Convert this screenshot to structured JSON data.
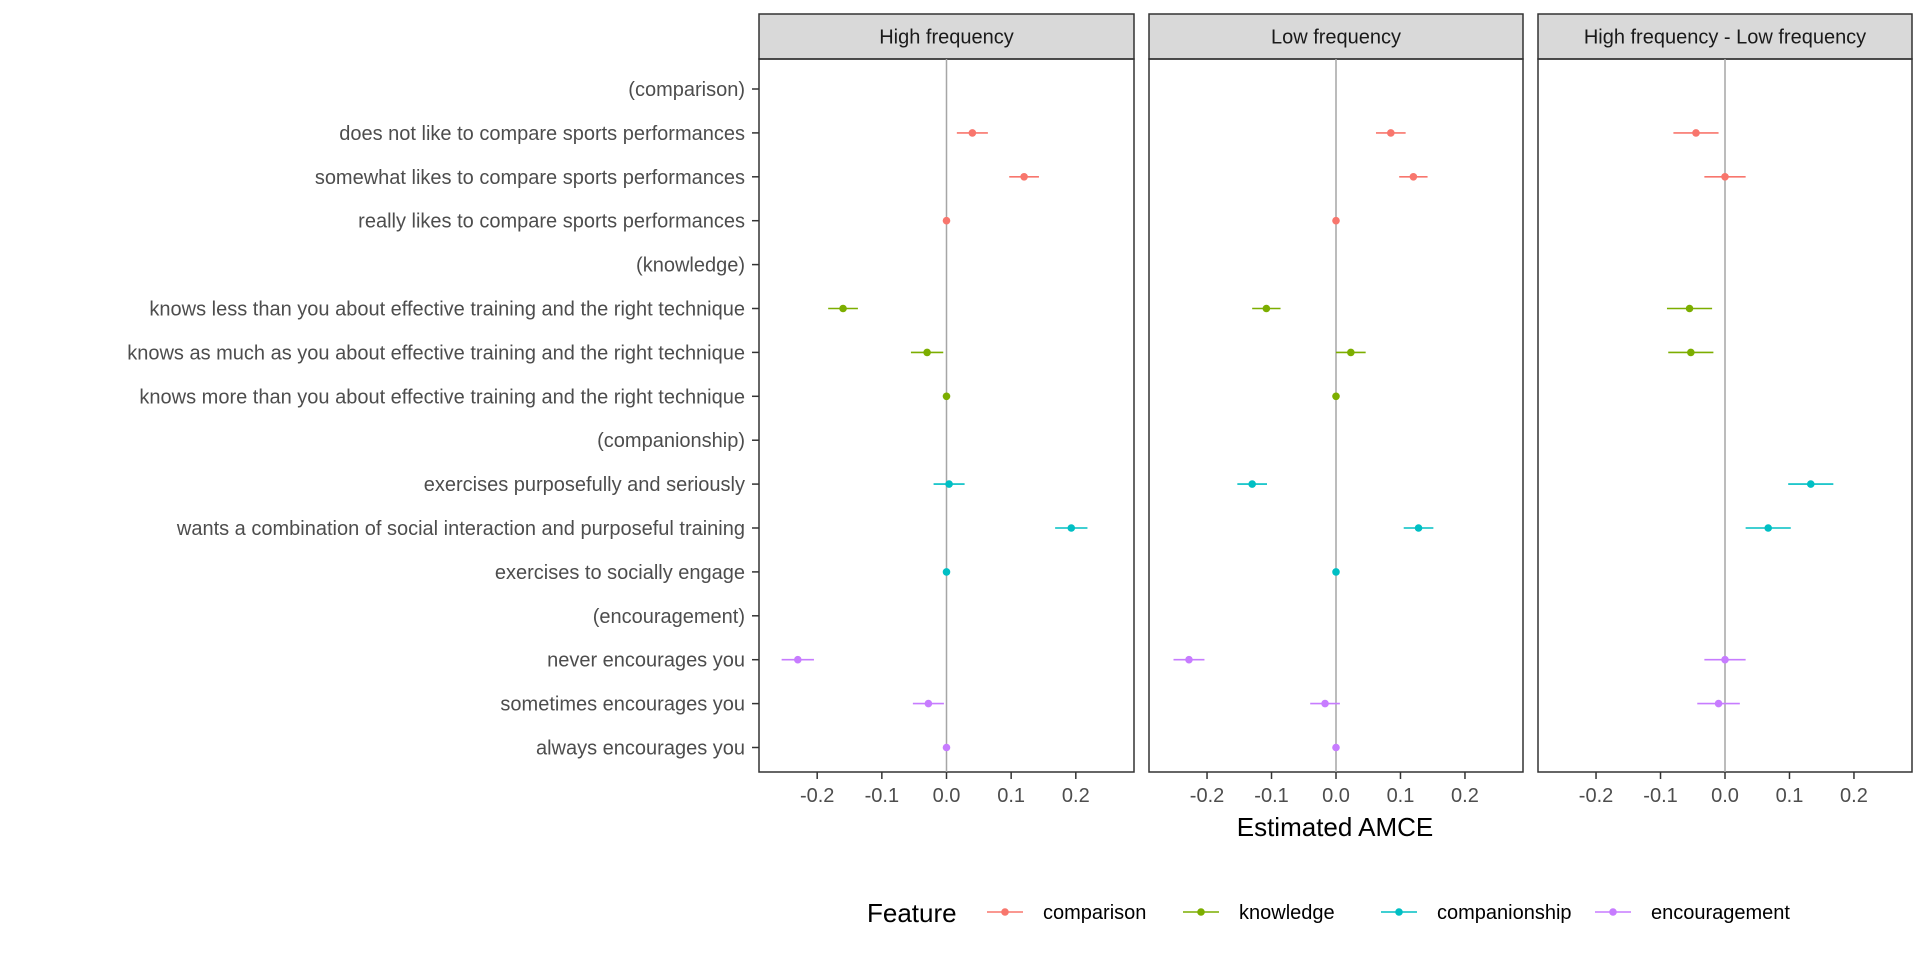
{
  "chart_data": {
    "type": "scatter",
    "subtype": "coefficient plot with horizontal error bars, faceted",
    "xlabel": "Estimated AMCE",
    "xlim": [
      -0.29,
      0.29
    ],
    "x_ticks": [
      -0.2,
      -0.1,
      0.0,
      0.1,
      0.2
    ],
    "x_tick_labels": [
      "-0.2",
      "-0.1",
      "0.0",
      "0.1",
      "0.2"
    ],
    "reference_line": 0,
    "grid": false,
    "legend": {
      "title": "Feature",
      "placement": "bottom",
      "entries": [
        "comparison",
        "knowledge",
        "companionship",
        "encouragement"
      ]
    },
    "colors": {
      "comparison": "#F8766D",
      "knowledge": "#7CAE00",
      "companionship": "#00BFC4",
      "encouragement": "#C77CFF"
    },
    "y_levels": [
      {
        "label": "(comparison)",
        "feature": null
      },
      {
        "label": "does not like to compare sports performances",
        "feature": "comparison"
      },
      {
        "label": "somewhat likes to compare sports performances",
        "feature": "comparison"
      },
      {
        "label": "really likes to compare sports performances",
        "feature": "comparison"
      },
      {
        "label": "(knowledge)",
        "feature": null
      },
      {
        "label": "knows less than you about effective training and the right technique",
        "feature": "knowledge"
      },
      {
        "label": "knows as much as you about effective training and the right technique",
        "feature": "knowledge"
      },
      {
        "label": "knows more than you about effective training and the right technique",
        "feature": "knowledge"
      },
      {
        "label": "(companionship)",
        "feature": null
      },
      {
        "label": "exercises purposefully and seriously",
        "feature": "companionship"
      },
      {
        "label": "wants a combination of social interaction and purposeful training",
        "feature": "companionship"
      },
      {
        "label": "exercises to socially engage",
        "feature": "companionship"
      },
      {
        "label": "(encouragement)",
        "feature": null
      },
      {
        "label": "never encourages you",
        "feature": "encouragement"
      },
      {
        "label": "sometimes encourages you",
        "feature": "encouragement"
      },
      {
        "label": "always encourages you",
        "feature": "encouragement"
      }
    ],
    "panels": [
      {
        "title": "High frequency",
        "estimates": [
          null,
          0.04,
          0.12,
          0.0,
          null,
          -0.16,
          -0.03,
          0.0,
          null,
          0.004,
          0.193,
          0.0,
          null,
          -0.23,
          -0.028,
          0.0
        ],
        "lower": [
          null,
          0.016,
          0.097,
          0.0,
          null,
          -0.183,
          -0.055,
          0.0,
          null,
          -0.02,
          0.168,
          0.0,
          null,
          -0.255,
          -0.052,
          0.0
        ],
        "upper": [
          null,
          0.064,
          0.143,
          0.0,
          null,
          -0.137,
          -0.005,
          0.0,
          null,
          0.028,
          0.218,
          0.0,
          null,
          -0.205,
          -0.004,
          0.0
        ]
      },
      {
        "title": "Low frequency",
        "estimates": [
          null,
          0.085,
          0.12,
          0.0,
          null,
          -0.108,
          0.023,
          0.0,
          null,
          -0.13,
          0.128,
          0.0,
          null,
          -0.228,
          -0.017,
          0.0
        ],
        "lower": [
          null,
          0.062,
          0.098,
          0.0,
          null,
          -0.13,
          0.0,
          0.0,
          null,
          -0.153,
          0.105,
          0.0,
          null,
          -0.252,
          -0.04,
          0.0
        ],
        "upper": [
          null,
          0.108,
          0.142,
          0.0,
          null,
          -0.086,
          0.046,
          0.0,
          null,
          -0.107,
          0.151,
          0.0,
          null,
          -0.204,
          0.006,
          0.0
        ]
      },
      {
        "title": "High frequency - Low frequency",
        "estimates": [
          null,
          -0.045,
          0.0,
          null,
          null,
          -0.055,
          -0.053,
          null,
          null,
          0.133,
          0.067,
          null,
          null,
          0.0,
          -0.01,
          null
        ],
        "lower": [
          null,
          -0.08,
          -0.032,
          null,
          null,
          -0.09,
          -0.088,
          null,
          null,
          0.098,
          0.032,
          null,
          null,
          -0.032,
          -0.043,
          null
        ],
        "upper": [
          null,
          -0.01,
          0.032,
          null,
          null,
          -0.02,
          -0.018,
          null,
          null,
          0.168,
          0.102,
          null,
          null,
          0.032,
          0.023,
          null
        ]
      }
    ]
  }
}
